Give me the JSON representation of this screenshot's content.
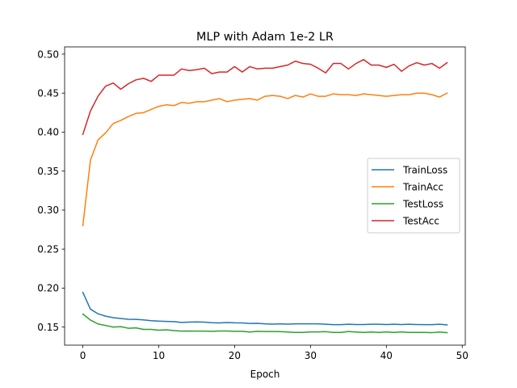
{
  "chart_data": {
    "type": "line",
    "title": "MLP with Adam 1e-2 LR",
    "xlabel": "Epoch",
    "ylabel": "",
    "xlim": [
      -2.4,
      50.4
    ],
    "ylim": [
      0.1268,
      0.5093
    ],
    "xticks": [
      0,
      10,
      20,
      30,
      40,
      50
    ],
    "yticks": [
      0.15,
      0.2,
      0.25,
      0.3,
      0.35,
      0.4,
      0.45,
      0.5
    ],
    "grid": false,
    "legend_position": "center-right",
    "x": [
      0,
      1,
      2,
      3,
      4,
      5,
      6,
      7,
      8,
      9,
      10,
      11,
      12,
      13,
      14,
      15,
      16,
      17,
      18,
      19,
      20,
      21,
      22,
      23,
      24,
      25,
      26,
      27,
      28,
      29,
      30,
      31,
      32,
      33,
      34,
      35,
      36,
      37,
      38,
      39,
      40,
      41,
      42,
      43,
      44,
      45,
      46,
      47,
      48
    ],
    "series": [
      {
        "name": "TrainLoss",
        "color": "#1f77b4",
        "values": [
          0.1945,
          0.173,
          0.167,
          0.164,
          0.162,
          0.161,
          0.16,
          0.1598,
          0.1592,
          0.1582,
          0.1576,
          0.1573,
          0.157,
          0.156,
          0.1563,
          0.1566,
          0.1563,
          0.1556,
          0.1553,
          0.1558,
          0.1554,
          0.1553,
          0.1546,
          0.1548,
          0.1541,
          0.1538,
          0.1541,
          0.1538,
          0.1541,
          0.1541,
          0.1541,
          0.1541,
          0.1536,
          0.1531,
          0.1531,
          0.1536,
          0.1533,
          0.1533,
          0.1536,
          0.1536,
          0.1533,
          0.1536,
          0.1533,
          0.1536,
          0.1533,
          0.1531,
          0.1531,
          0.1536,
          0.1528
        ]
      },
      {
        "name": "TrainAcc",
        "color": "#ff7f0e",
        "values": [
          0.28,
          0.364,
          0.39,
          0.399,
          0.411,
          0.415,
          0.42,
          0.424,
          0.425,
          0.429,
          0.433,
          0.435,
          0.434,
          0.438,
          0.437,
          0.439,
          0.439,
          0.441,
          0.443,
          0.439,
          0.441,
          0.442,
          0.443,
          0.441,
          0.446,
          0.447,
          0.446,
          0.443,
          0.447,
          0.445,
          0.449,
          0.446,
          0.446,
          0.449,
          0.448,
          0.448,
          0.447,
          0.449,
          0.448,
          0.447,
          0.446,
          0.447,
          0.448,
          0.448,
          0.45,
          0.45,
          0.448,
          0.445,
          0.45
        ]
      },
      {
        "name": "TestLoss",
        "color": "#2ca02c",
        "values": [
          0.1667,
          0.159,
          0.154,
          0.152,
          0.15,
          0.1505,
          0.1485,
          0.149,
          0.147,
          0.147,
          0.146,
          0.1465,
          0.1455,
          0.1448,
          0.145,
          0.1448,
          0.1448,
          0.1446,
          0.145,
          0.145,
          0.1446,
          0.1446,
          0.1436,
          0.1446,
          0.1443,
          0.1443,
          0.1441,
          0.1436,
          0.1431,
          0.1431,
          0.1438,
          0.1438,
          0.1441,
          0.1431,
          0.1431,
          0.1443,
          0.1436,
          0.1431,
          0.1436,
          0.1431,
          0.1438,
          0.1431,
          0.1438,
          0.1431,
          0.1431,
          0.1431,
          0.1428,
          0.1436,
          0.1428
        ]
      },
      {
        "name": "TestAcc",
        "color": "#d62728",
        "values": [
          0.397,
          0.427,
          0.446,
          0.459,
          0.463,
          0.455,
          0.462,
          0.467,
          0.469,
          0.465,
          0.473,
          0.473,
          0.473,
          0.481,
          0.479,
          0.48,
          0.482,
          0.475,
          0.477,
          0.477,
          0.484,
          0.477,
          0.484,
          0.481,
          0.482,
          0.482,
          0.484,
          0.486,
          0.491,
          0.488,
          0.487,
          0.482,
          0.476,
          0.488,
          0.488,
          0.481,
          0.488,
          0.493,
          0.486,
          0.486,
          0.483,
          0.487,
          0.478,
          0.485,
          0.489,
          0.486,
          0.488,
          0.482,
          0.489
        ]
      }
    ]
  }
}
